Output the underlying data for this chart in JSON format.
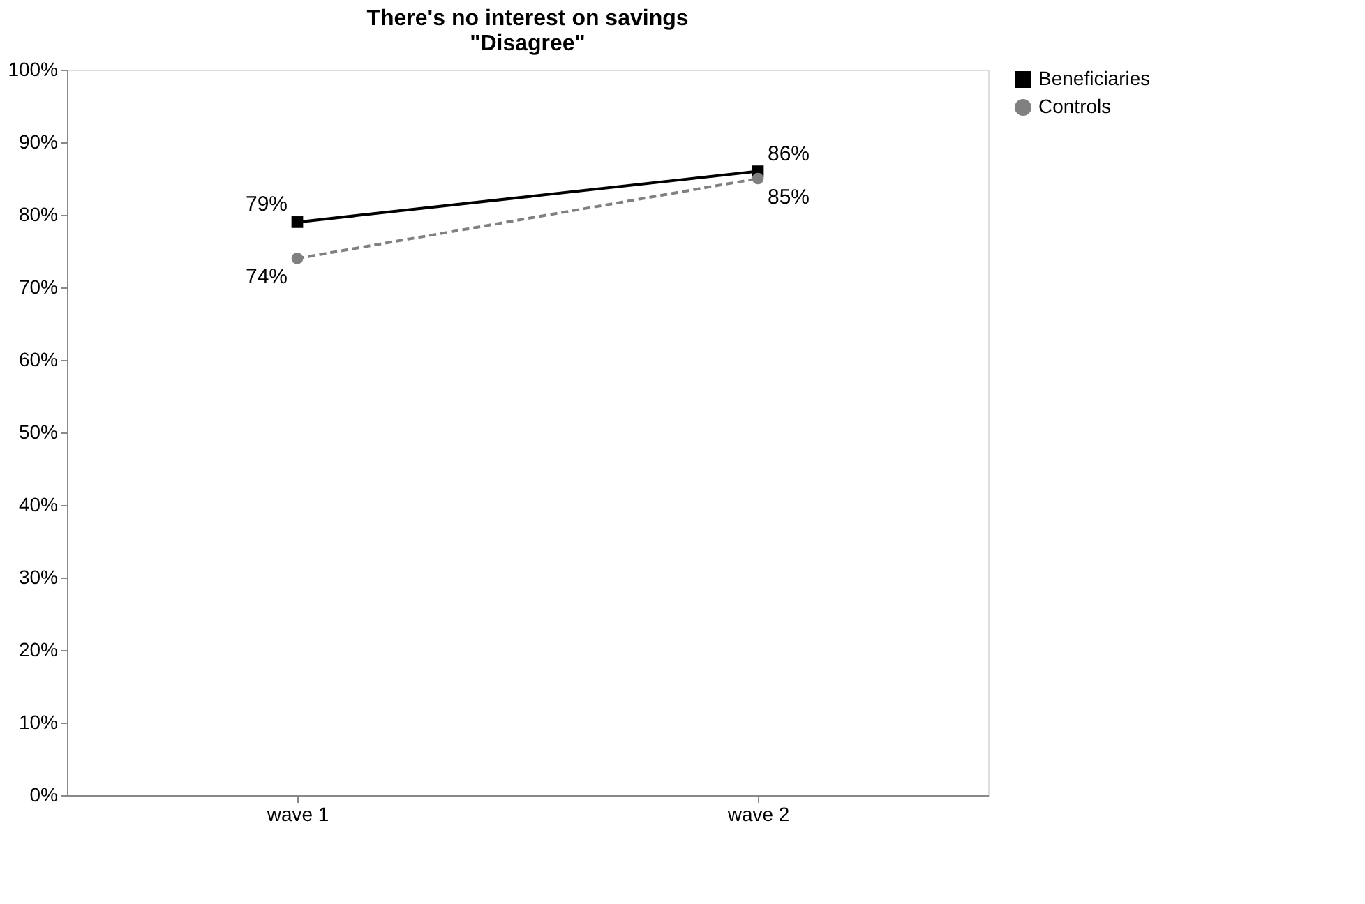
{
  "chart_data": {
    "type": "line",
    "title": [
      "There's no interest on savings",
      "\"Disagree\""
    ],
    "categories": [
      "wave 1",
      "wave 2"
    ],
    "series": [
      {
        "name": "Beneficiaries",
        "color": "#000000",
        "values": [
          79,
          86
        ],
        "value_labels": [
          "79%",
          "86%"
        ],
        "marker": "square",
        "line_style": "solid"
      },
      {
        "name": "Controls",
        "color": "#808080",
        "values": [
          74,
          85
        ],
        "value_labels": [
          "74%",
          "85%"
        ],
        "marker": "circle",
        "line_style": "dashed"
      }
    ],
    "ylim": [
      0,
      100
    ],
    "yticks": [
      {
        "value": 0,
        "label": "0%"
      },
      {
        "value": 10,
        "label": "10%"
      },
      {
        "value": 20,
        "label": "20%"
      },
      {
        "value": 30,
        "label": "30%"
      },
      {
        "value": 40,
        "label": "40%"
      },
      {
        "value": 50,
        "label": "50%"
      },
      {
        "value": 60,
        "label": "60%"
      },
      {
        "value": 70,
        "label": "70%"
      },
      {
        "value": 80,
        "label": "80%"
      },
      {
        "value": 90,
        "label": "90%"
      },
      {
        "value": 100,
        "label": "100%"
      }
    ],
    "grid": false,
    "legend": "right"
  }
}
